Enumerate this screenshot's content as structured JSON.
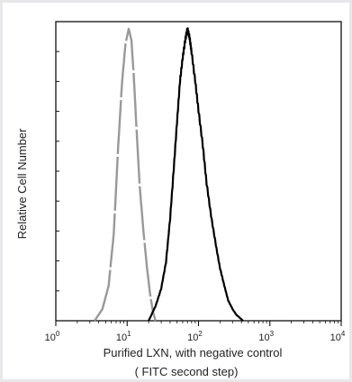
{
  "chart_data": {
    "type": "line",
    "xscale": "log",
    "xlim": [
      1,
      10000
    ],
    "ylim": [
      0,
      1
    ],
    "x_ticks": [
      {
        "value": 1,
        "base": "10",
        "exp": "0"
      },
      {
        "value": 10,
        "base": "10",
        "exp": "1"
      },
      {
        "value": 100,
        "base": "10",
        "exp": "2"
      },
      {
        "value": 1000,
        "base": "10",
        "exp": "3"
      },
      {
        "value": 10000,
        "base": "10",
        "exp": "4"
      }
    ],
    "ylabel": "Relative Cell Number",
    "xlabel_line1": "Purified  LXN,  with negative control",
    "xlabel_line2": "( FITC second step)",
    "grid": false,
    "series": [
      {
        "color": "#999999",
        "x": [
          3.5,
          4.5,
          5.5,
          6.5,
          7.5,
          8.5,
          9.5,
          10.5,
          11.5,
          12.5,
          13.5,
          15,
          17,
          19,
          21,
          23,
          25
        ],
        "y": [
          0.0,
          0.04,
          0.12,
          0.3,
          0.6,
          0.82,
          0.95,
          1.0,
          0.96,
          0.82,
          0.66,
          0.46,
          0.3,
          0.18,
          0.09,
          0.03,
          0.0
        ]
      },
      {
        "color": "#000000",
        "x": [
          20,
          25,
          30,
          35,
          40,
          45,
          50,
          55,
          60,
          65,
          70,
          75,
          80,
          90,
          100,
          115,
          130,
          150,
          175,
          200,
          230,
          260,
          300,
          340,
          380,
          420
        ],
        "y": [
          0.0,
          0.05,
          0.11,
          0.2,
          0.35,
          0.52,
          0.68,
          0.82,
          0.9,
          0.96,
          1.0,
          0.97,
          0.92,
          0.82,
          0.72,
          0.6,
          0.47,
          0.36,
          0.26,
          0.18,
          0.12,
          0.07,
          0.04,
          0.02,
          0.01,
          0.0
        ]
      }
    ]
  }
}
